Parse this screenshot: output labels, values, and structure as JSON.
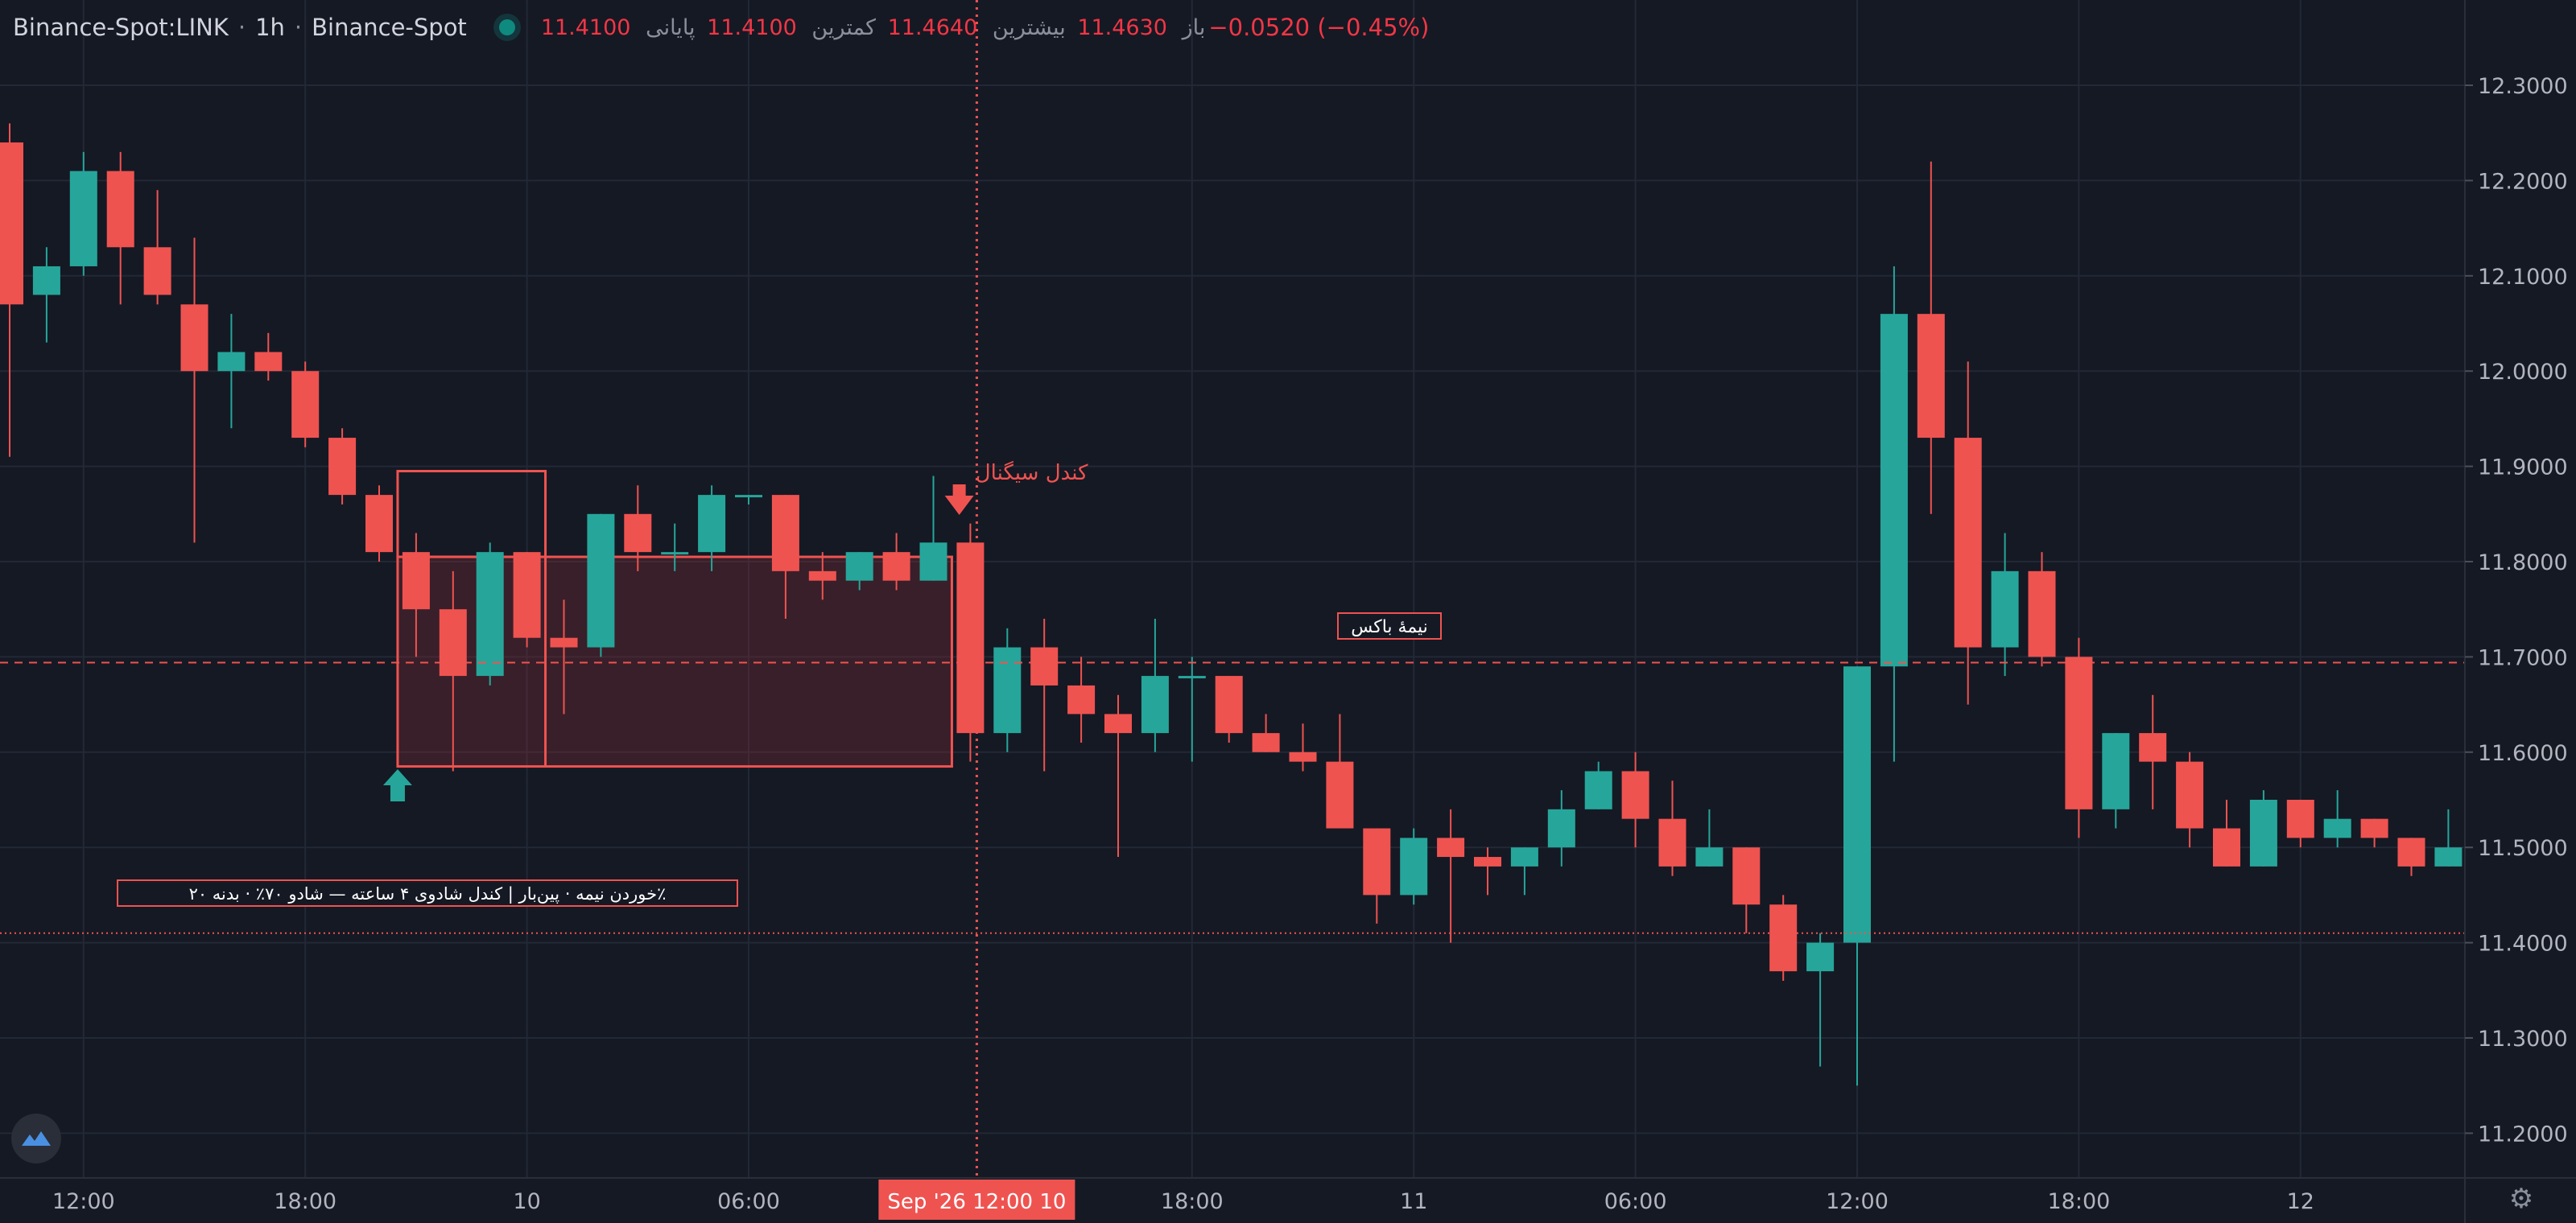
{
  "header": {
    "symbol": "Binance-Spot:LINK",
    "interval": "1h",
    "exchange": "Binance-Spot",
    "open_label": "باز",
    "open": "11.4630",
    "high_label": "بیشترین",
    "high": "11.4640",
    "low_label": "کمترین",
    "low": "11.4100",
    "close_label": "پایانی",
    "close": "11.4100",
    "change": "−0.0520 (−0.45%)"
  },
  "colors": {
    "background": "#151924",
    "grid": "#232836",
    "up": "#26a69a",
    "down": "#ef5350",
    "text": "#b2b5be"
  },
  "annotations": {
    "signal_label": "کندل سیگنال",
    "half_box_label": "نیمهٔ باکس",
    "half_box_price": "11.6940",
    "current_price": "11.4100",
    "last_close_price": "11.5030",
    "note": "٪خوردن نیمه · پین‌بار | کندل شادوی ۴ ساعته — شادو ۷۰٪ · بدنه ۲۰"
  },
  "crosshair_time_label": "Sep '26  12:00 10",
  "icons": {
    "logo": "tradingview-logo-icon",
    "settings": "gear-icon"
  },
  "chart_data": {
    "type": "candlestick",
    "title": "",
    "ylim": [
      11.17,
      12.4
    ],
    "y_ticks": [
      "12.3000",
      "12.2000",
      "12.1000",
      "12.0000",
      "11.9000",
      "11.8000",
      "11.7000",
      "11.6000",
      "11.5000",
      "11.4000",
      "11.3000",
      "11.2000"
    ],
    "x_ticks": [
      {
        "index": 2,
        "label": "12:00"
      },
      {
        "index": 8,
        "label": "18:00"
      },
      {
        "index": 14,
        "label": "10"
      },
      {
        "index": 20,
        "label": "06:00"
      },
      {
        "index": 32,
        "label": "18:00"
      },
      {
        "index": 38,
        "label": "11"
      },
      {
        "index": 44,
        "label": "06:00"
      },
      {
        "index": 50,
        "label": "12:00"
      },
      {
        "index": 56,
        "label": "18:00"
      },
      {
        "index": 62,
        "label": "12"
      }
    ],
    "crosshair_index": 26,
    "candles": [
      [
        12.24,
        12.26,
        11.91,
        12.07
      ],
      [
        12.08,
        12.13,
        12.03,
        12.11
      ],
      [
        12.11,
        12.23,
        12.1,
        12.21
      ],
      [
        12.21,
        12.23,
        12.07,
        12.13
      ],
      [
        12.13,
        12.19,
        12.07,
        12.08
      ],
      [
        12.07,
        12.14,
        11.82,
        12.0
      ],
      [
        12.0,
        12.06,
        11.94,
        12.02
      ],
      [
        12.02,
        12.04,
        11.99,
        12.0
      ],
      [
        12.0,
        12.01,
        11.92,
        11.93
      ],
      [
        11.93,
        11.94,
        11.86,
        11.87
      ],
      [
        11.87,
        11.88,
        11.8,
        11.81
      ],
      [
        11.81,
        11.83,
        11.7,
        11.75
      ],
      [
        11.75,
        11.79,
        11.58,
        11.68
      ],
      [
        11.68,
        11.82,
        11.67,
        11.81
      ],
      [
        11.81,
        11.81,
        11.71,
        11.72
      ],
      [
        11.72,
        11.76,
        11.64,
        11.71
      ],
      [
        11.71,
        11.85,
        11.7,
        11.85
      ],
      [
        11.85,
        11.88,
        11.79,
        11.81
      ],
      [
        11.81,
        11.84,
        11.79,
        11.81
      ],
      [
        11.81,
        11.88,
        11.79,
        11.87
      ],
      [
        11.87,
        11.87,
        11.86,
        11.87
      ],
      [
        11.87,
        11.87,
        11.74,
        11.79
      ],
      [
        11.79,
        11.81,
        11.76,
        11.78
      ],
      [
        11.78,
        11.81,
        11.77,
        11.81
      ],
      [
        11.81,
        11.83,
        11.77,
        11.78
      ],
      [
        11.78,
        11.89,
        11.78,
        11.82
      ],
      [
        11.82,
        11.84,
        11.59,
        11.62
      ],
      [
        11.62,
        11.73,
        11.6,
        11.71
      ],
      [
        11.71,
        11.74,
        11.58,
        11.67
      ],
      [
        11.67,
        11.7,
        11.61,
        11.64
      ],
      [
        11.64,
        11.66,
        11.49,
        11.62
      ],
      [
        11.62,
        11.74,
        11.6,
        11.68
      ],
      [
        11.68,
        11.7,
        11.59,
        11.68
      ],
      [
        11.68,
        11.68,
        11.61,
        11.62
      ],
      [
        11.62,
        11.64,
        11.6,
        11.6
      ],
      [
        11.6,
        11.63,
        11.58,
        11.59
      ],
      [
        11.59,
        11.64,
        11.52,
        11.52
      ],
      [
        11.52,
        11.52,
        11.42,
        11.45
      ],
      [
        11.45,
        11.52,
        11.44,
        11.51
      ],
      [
        11.51,
        11.54,
        11.4,
        11.49
      ],
      [
        11.49,
        11.5,
        11.45,
        11.48
      ],
      [
        11.48,
        11.5,
        11.45,
        11.5
      ],
      [
        11.5,
        11.56,
        11.48,
        11.54
      ],
      [
        11.54,
        11.59,
        11.54,
        11.58
      ],
      [
        11.58,
        11.6,
        11.5,
        11.53
      ],
      [
        11.53,
        11.57,
        11.47,
        11.48
      ],
      [
        11.48,
        11.54,
        11.48,
        11.5
      ],
      [
        11.5,
        11.5,
        11.41,
        11.44
      ],
      [
        11.44,
        11.45,
        11.36,
        11.37
      ],
      [
        11.37,
        11.41,
        11.27,
        11.4
      ],
      [
        11.4,
        11.69,
        11.25,
        11.69
      ],
      [
        11.69,
        12.11,
        11.59,
        12.06
      ],
      [
        12.06,
        12.22,
        11.85,
        11.93
      ],
      [
        11.93,
        12.01,
        11.65,
        11.71
      ],
      [
        11.71,
        11.83,
        11.68,
        11.79
      ],
      [
        11.79,
        11.81,
        11.69,
        11.7
      ],
      [
        11.7,
        11.72,
        11.51,
        11.54
      ],
      [
        11.54,
        11.62,
        11.52,
        11.62
      ],
      [
        11.62,
        11.66,
        11.54,
        11.59
      ],
      [
        11.59,
        11.6,
        11.5,
        11.52
      ],
      [
        11.52,
        11.55,
        11.48,
        11.48
      ],
      [
        11.48,
        11.56,
        11.48,
        11.55
      ],
      [
        11.55,
        11.55,
        11.5,
        11.51
      ],
      [
        11.51,
        11.56,
        11.5,
        11.53
      ],
      [
        11.53,
        11.53,
        11.5,
        11.51
      ],
      [
        11.51,
        11.51,
        11.47,
        11.48
      ],
      [
        11.48,
        11.54,
        11.48,
        11.5
      ]
    ]
  }
}
